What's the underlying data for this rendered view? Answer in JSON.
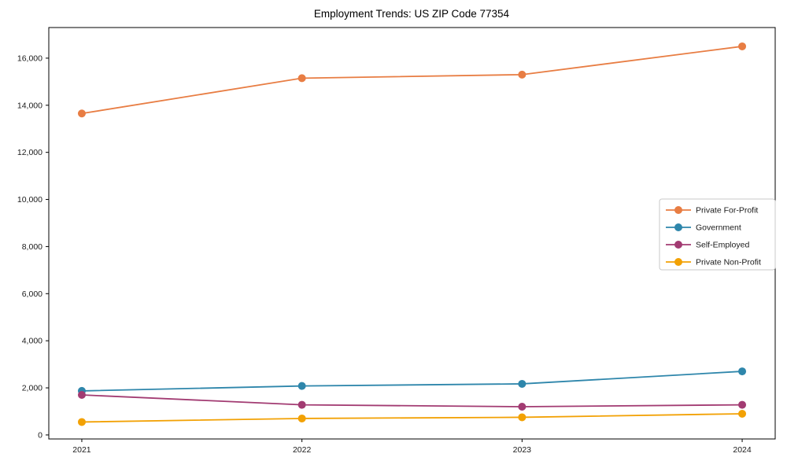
{
  "chart_data": {
    "type": "line",
    "title": "Employment Trends: US ZIP Code 77354",
    "x": [
      2021,
      2022,
      2023,
      2024
    ],
    "x_tick_labels": [
      "2021",
      "2022",
      "2023",
      "2024"
    ],
    "series": [
      {
        "name": "Private For-Profit",
        "color": "#E87D43",
        "values": [
          13650,
          15150,
          15300,
          16500
        ]
      },
      {
        "name": "Government",
        "color": "#2E86AB",
        "values": [
          1870,
          2080,
          2170,
          2700
        ]
      },
      {
        "name": "Self-Employed",
        "color": "#A23B72",
        "values": [
          1700,
          1280,
          1200,
          1280
        ]
      },
      {
        "name": "Private Non-Profit",
        "color": "#F2A104",
        "values": [
          550,
          700,
          750,
          900
        ]
      }
    ],
    "xlabel": "",
    "ylabel": "",
    "ylim": [
      0,
      16000
    ],
    "yticks": [
      0,
      2000,
      4000,
      6000,
      8000,
      10000,
      12000,
      14000,
      16000
    ],
    "grid": false,
    "legend_position": "center-right",
    "marker": "circle",
    "axis_color": "#000000",
    "tick_label_color": "#1a1a1a",
    "legend_border_color": "#c9c9c9"
  }
}
